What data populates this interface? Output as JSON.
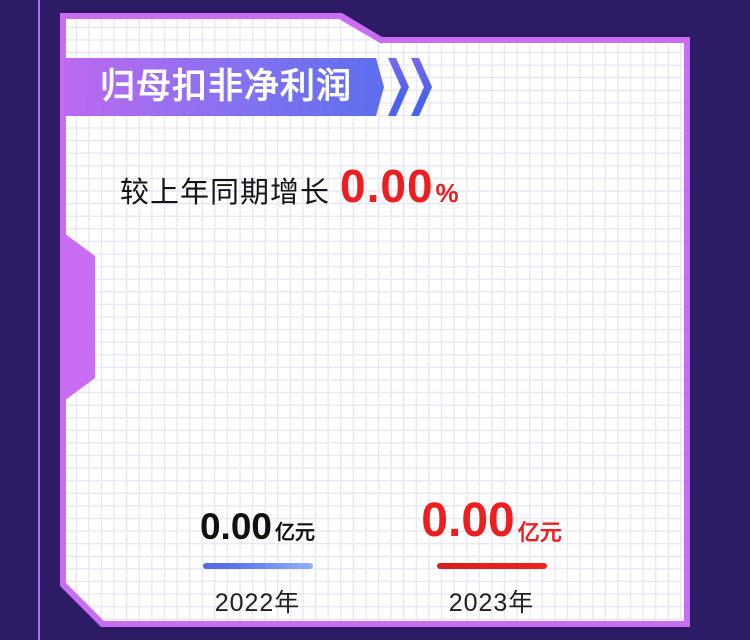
{
  "colors": {
    "background": "#2d1b66",
    "accent_line": "#b16ef2",
    "card_border": "#c96df2",
    "ribbon_gradient_start": "#bd69f0",
    "ribbon_gradient_end": "#5b6eee",
    "chevron_blue": "#4a63ec",
    "hatch_purple": "#8d4cd6",
    "grid_line": "#eae8f4",
    "highlight_red": "#ed1e1f",
    "text_black": "#151515",
    "bar_2022_blue": "#5d76ee",
    "bar_2023_red": "#e2201c"
  },
  "icons": {
    "title_arrow": "double-chevron-right"
  },
  "growth": {
    "label": "较上年同期增长",
    "value": "0.00",
    "unit": "%"
  },
  "chart_data": {
    "type": "bar",
    "title": "归母扣非净利润",
    "categories": [
      "2022年",
      "2023年"
    ],
    "values": [
      0.0,
      0.0
    ],
    "unit": "亿元",
    "annotation": "较上年同期增长 0.00%",
    "legend_position": "none",
    "grid": true,
    "items": [
      {
        "year": "2022年",
        "value": "0.00",
        "unit": "亿元",
        "color": "#5d76ee"
      },
      {
        "year": "2023年",
        "value": "0.00",
        "unit": "亿元",
        "color": "#ed1e1f"
      }
    ]
  }
}
